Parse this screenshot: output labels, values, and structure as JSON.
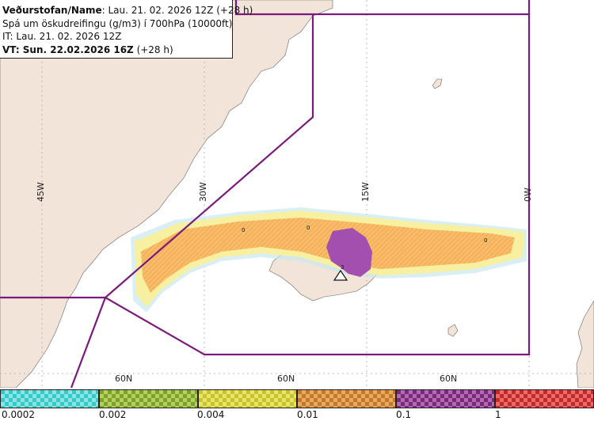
{
  "header": {
    "line1_bold": "Veðurstofan/Name",
    "line1_rest": ": Lau. 21. 02. 2026 12Z (+28 h)",
    "line2": "Spá um öskudreifingu (g/m3) í 700hPa (10000ft)",
    "line3": "IT: Lau. 21. 02. 2026 12Z",
    "line4_bold": "VT: Sun. 22.02.2026 16Z",
    "line4_rest": " (+28 h)"
  },
  "map": {
    "longitude_labels": [
      "45W",
      "30W",
      "15W",
      "0W"
    ],
    "latitude_labels": [
      "60N",
      "60N",
      "60N"
    ],
    "contour_labels": [
      "0",
      "0",
      "0",
      "3"
    ],
    "colors": {
      "ocean": "#ffffff",
      "land": "#f2e4d9",
      "graticule": "#b8b8b8",
      "fir_boundary": "#7a1a7a",
      "plume_low": "#f7f0a0",
      "plume_mid": "#f8bd6a",
      "plume_high": "#a34fb0",
      "plume_light": "#c9e8f0"
    }
  },
  "legend": {
    "tick_labels": [
      "0.0002",
      "0.002",
      "0.004",
      "0.01",
      "0.1",
      "1"
    ],
    "bins": [
      {
        "color_a": "#35c9c9",
        "color_b": "#8ee3e3"
      },
      {
        "color_a": "#7ea12a",
        "color_b": "#b6cf63"
      },
      {
        "color_a": "#c9c32a",
        "color_b": "#e9e46d"
      },
      {
        "color_a": "#c4782a",
        "color_b": "#e7aa63"
      },
      {
        "color_a": "#7a2a7a",
        "color_b": "#b26ab2"
      },
      {
        "color_a": "#c42a2a",
        "color_b": "#e96d6d"
      }
    ]
  }
}
